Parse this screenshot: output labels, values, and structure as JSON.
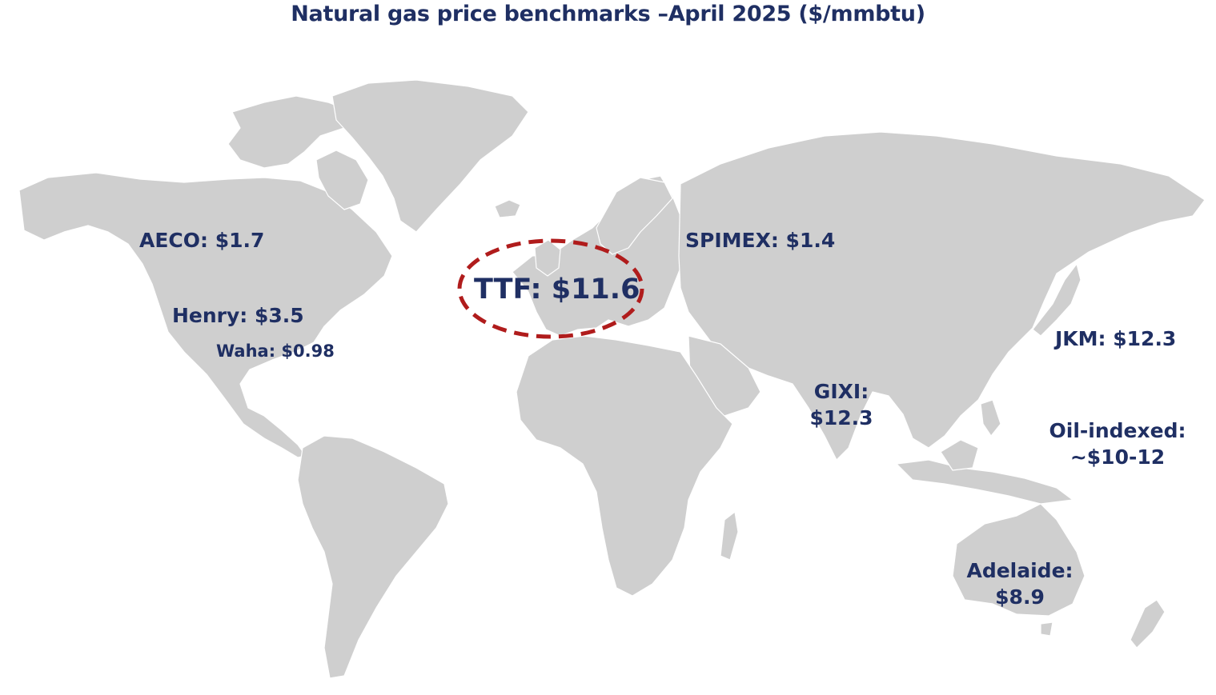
{
  "title": "Natural gas price benchmarks –April 2025 ($/mmbtu)",
  "colors": {
    "land": "#cfcfcf",
    "border": "#ffffff",
    "text": "#1f2f63",
    "highlight": "#b01c1c",
    "background": "#ffffff"
  },
  "benchmarks": {
    "aeco": "AECO: $1.7",
    "henry": "Henry: $3.5",
    "waha": "Waha: $0.98",
    "ttf": "TTF: $11.6",
    "spimex": "SPIMEX: $1.4",
    "gixi": {
      "name": "GIXI:",
      "price": "$12.3"
    },
    "jkm": "JKM: $12.3",
    "oil_indexed": {
      "name": "Oil-indexed:",
      "price": "~$10-12"
    },
    "adelaide": {
      "name": "Adelaide:",
      "price": "$8.9"
    }
  }
}
